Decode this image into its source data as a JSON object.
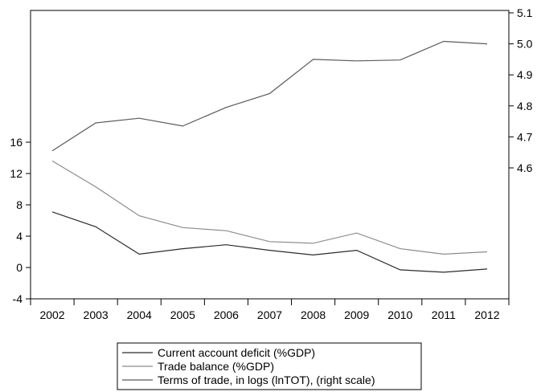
{
  "chart_data": {
    "type": "line",
    "categories": [
      "2002",
      "2003",
      "2004",
      "2005",
      "2006",
      "2007",
      "2008",
      "2009",
      "2010",
      "2011",
      "2012"
    ],
    "series": [
      {
        "name": "Current account deficit (%GDP)",
        "axis": "left",
        "color": "#2b2b2b",
        "values": [
          7.1,
          5.2,
          1.7,
          2.4,
          2.9,
          2.2,
          1.6,
          2.2,
          -0.3,
          -0.6,
          -0.2
        ]
      },
      {
        "name": "Trade balance (%GDP)",
        "axis": "left",
        "color": "#8c8c8c",
        "values": [
          13.6,
          10.3,
          6.6,
          5.1,
          4.7,
          3.3,
          3.1,
          4.4,
          2.4,
          1.7,
          2.0
        ]
      },
      {
        "name": "Terms of trade, in logs (lnTOT), (right scale)",
        "axis": "right",
        "color": "#5a5a5a",
        "values": [
          4.655,
          4.745,
          4.76,
          4.735,
          4.795,
          4.84,
          4.95,
          4.945,
          4.948,
          5.008,
          5.0
        ]
      }
    ],
    "y_left": {
      "ticks": [
        "16",
        "12",
        "8",
        "4",
        "0",
        "-4"
      ],
      "tick_values": [
        16,
        12,
        8,
        4,
        0,
        -4
      ]
    },
    "y_right": {
      "ticks": [
        "5.1",
        "5.0",
        "4.9",
        "4.8",
        "4.7",
        "4.6"
      ],
      "tick_values": [
        5.1,
        5.0,
        4.9,
        4.8,
        4.7,
        4.6
      ]
    },
    "grid": false,
    "legend_position": "bottom-center"
  }
}
